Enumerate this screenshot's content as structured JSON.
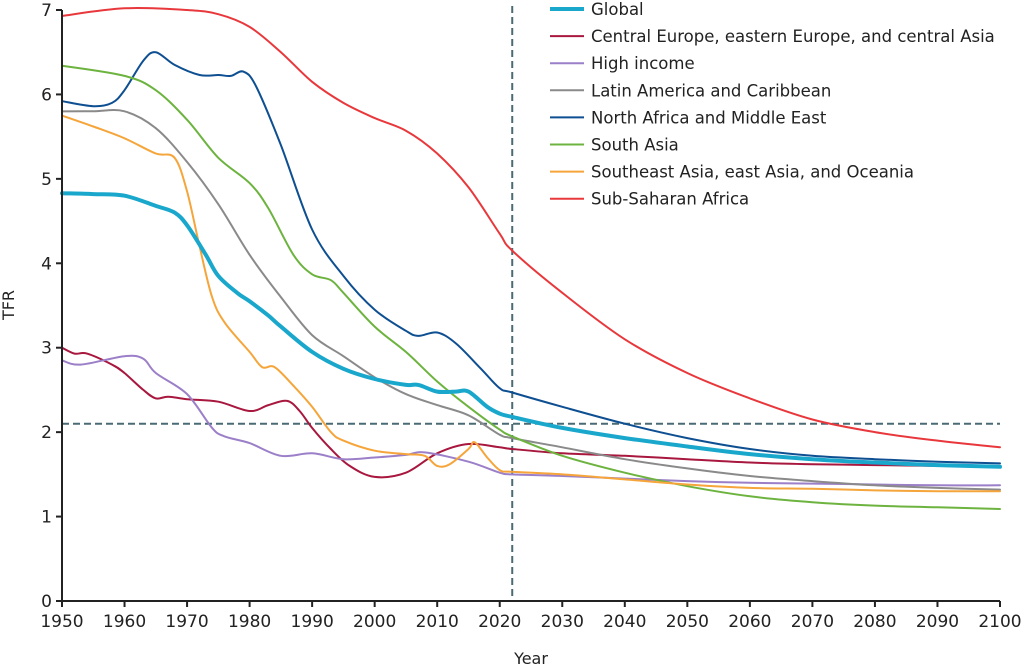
{
  "chart_data": {
    "type": "line",
    "xlabel": "Year",
    "ylabel": "TFR",
    "xlim": [
      1950,
      2100
    ],
    "ylim": [
      0,
      7
    ],
    "xticks": [
      1950,
      1960,
      1970,
      1980,
      1990,
      2000,
      2010,
      2020,
      2030,
      2040,
      2050,
      2060,
      2070,
      2080,
      2090,
      2100
    ],
    "yticks": [
      0,
      1,
      2,
      3,
      4,
      5,
      6,
      7
    ],
    "grid": false,
    "legend_position": "top-right",
    "reference_lines": {
      "vertical_year": 2022,
      "horizontal_tfr": 2.1,
      "color": "#4a6b75"
    },
    "series": [
      {
        "name": "Global",
        "color": "#1aa7cc",
        "width": 4,
        "x": [
          1950,
          1955,
          1960,
          1965,
          1968,
          1970,
          1973,
          1975,
          1978,
          1980,
          1983,
          1985,
          1990,
          1995,
          2000,
          2005,
          2007,
          2010,
          2013,
          2015,
          2018,
          2020,
          2022,
          2030,
          2040,
          2050,
          2060,
          2070,
          2080,
          2090,
          2100
        ],
        "y": [
          4.83,
          4.82,
          4.8,
          4.68,
          4.6,
          4.45,
          4.1,
          3.85,
          3.65,
          3.55,
          3.38,
          3.25,
          2.95,
          2.75,
          2.63,
          2.56,
          2.56,
          2.48,
          2.48,
          2.48,
          2.3,
          2.22,
          2.18,
          2.05,
          1.93,
          1.83,
          1.74,
          1.68,
          1.64,
          1.61,
          1.59
        ]
      },
      {
        "name": "Central Europe, eastern Europe, and central Asia",
        "color": "#a8173e",
        "width": 2,
        "x": [
          1950,
          1952,
          1954,
          1958,
          1960,
          1963,
          1965,
          1967,
          1970,
          1975,
          1980,
          1983,
          1986,
          1988,
          1990,
          1993,
          1996,
          2000,
          2005,
          2010,
          2015,
          2020,
          2022,
          2030,
          2040,
          2050,
          2060,
          2070,
          2080,
          2090,
          2100
        ],
        "y": [
          3.0,
          2.93,
          2.93,
          2.8,
          2.7,
          2.5,
          2.4,
          2.42,
          2.39,
          2.36,
          2.25,
          2.32,
          2.37,
          2.25,
          2.05,
          1.8,
          1.6,
          1.47,
          1.52,
          1.75,
          1.86,
          1.82,
          1.8,
          1.75,
          1.72,
          1.68,
          1.64,
          1.62,
          1.61,
          1.6,
          1.59
        ]
      },
      {
        "name": "High income",
        "color": "#9b7fc8",
        "width": 2,
        "x": [
          1950,
          1953,
          1960,
          1963,
          1965,
          1970,
          1974,
          1976,
          1980,
          1985,
          1990,
          1995,
          2000,
          2005,
          2008,
          2015,
          2020,
          2022,
          2030,
          2040,
          2050,
          2060,
          2070,
          2080,
          2090,
          2100
        ],
        "y": [
          2.85,
          2.8,
          2.9,
          2.87,
          2.7,
          2.45,
          2.05,
          1.95,
          1.87,
          1.72,
          1.75,
          1.68,
          1.7,
          1.73,
          1.76,
          1.65,
          1.52,
          1.5,
          1.48,
          1.45,
          1.42,
          1.4,
          1.39,
          1.38,
          1.37,
          1.37
        ]
      },
      {
        "name": "Latin America and Caribbean",
        "color": "#8a8a8a",
        "width": 2,
        "x": [
          1950,
          1955,
          1960,
          1965,
          1970,
          1975,
          1980,
          1985,
          1990,
          1995,
          2000,
          2005,
          2010,
          2015,
          2020,
          2022,
          2030,
          2040,
          2050,
          2060,
          2070,
          2080,
          2090,
          2100
        ],
        "y": [
          5.8,
          5.8,
          5.8,
          5.6,
          5.2,
          4.7,
          4.1,
          3.6,
          3.15,
          2.9,
          2.65,
          2.45,
          2.32,
          2.2,
          1.97,
          1.93,
          1.82,
          1.68,
          1.57,
          1.48,
          1.42,
          1.37,
          1.34,
          1.32
        ]
      },
      {
        "name": "North Africa and Middle East",
        "color": "#0e4f92",
        "width": 2,
        "x": [
          1950,
          1955,
          1958,
          1960,
          1963,
          1965,
          1968,
          1972,
          1975,
          1977,
          1979,
          1981,
          1985,
          1990,
          1995,
          2000,
          2005,
          2007,
          2010,
          2013,
          2017,
          2020,
          2022,
          2030,
          2040,
          2050,
          2060,
          2070,
          2080,
          2090,
          2100
        ],
        "y": [
          5.92,
          5.86,
          5.9,
          6.05,
          6.4,
          6.5,
          6.35,
          6.23,
          6.23,
          6.22,
          6.27,
          6.1,
          5.4,
          4.4,
          3.85,
          3.45,
          3.2,
          3.14,
          3.18,
          3.05,
          2.75,
          2.52,
          2.47,
          2.3,
          2.1,
          1.93,
          1.8,
          1.72,
          1.68,
          1.65,
          1.63
        ]
      },
      {
        "name": "South Asia",
        "color": "#6db33f",
        "width": 2,
        "x": [
          1950,
          1960,
          1965,
          1970,
          1975,
          1980,
          1983,
          1987,
          1990,
          1993,
          1995,
          2000,
          2005,
          2010,
          2015,
          2020,
          2022,
          2030,
          2040,
          2050,
          2060,
          2070,
          2080,
          2090,
          2100
        ],
        "y": [
          6.34,
          6.22,
          6.05,
          5.7,
          5.25,
          4.95,
          4.65,
          4.1,
          3.87,
          3.8,
          3.65,
          3.25,
          2.95,
          2.6,
          2.3,
          2.03,
          1.95,
          1.72,
          1.52,
          1.36,
          1.24,
          1.17,
          1.13,
          1.11,
          1.09
        ]
      },
      {
        "name": "Southeast Asia, east Asia, and Oceania",
        "color": "#f5a53a",
        "width": 2,
        "x": [
          1950,
          1955,
          1960,
          1965,
          1968,
          1970,
          1972,
          1974,
          1976,
          1980,
          1982,
          1984,
          1987,
          1990,
          1993,
          1995,
          2000,
          2005,
          2008,
          2010,
          2012,
          2015,
          2016,
          2018,
          2020,
          2022,
          2030,
          2040,
          2050,
          2060,
          2070,
          2080,
          2090,
          2100
        ],
        "y": [
          5.75,
          5.62,
          5.48,
          5.3,
          5.25,
          4.85,
          4.2,
          3.6,
          3.3,
          2.95,
          2.77,
          2.77,
          2.55,
          2.3,
          2.0,
          1.9,
          1.78,
          1.74,
          1.72,
          1.6,
          1.62,
          1.8,
          1.88,
          1.7,
          1.55,
          1.53,
          1.5,
          1.44,
          1.38,
          1.34,
          1.33,
          1.31,
          1.3,
          1.3
        ]
      },
      {
        "name": "Sub-Saharan Africa",
        "color": "#e8383c",
        "width": 2,
        "x": [
          1950,
          1960,
          1970,
          1975,
          1980,
          1985,
          1990,
          1995,
          2000,
          2005,
          2010,
          2015,
          2020,
          2022,
          2030,
          2040,
          2050,
          2060,
          2070,
          2080,
          2090,
          2100
        ],
        "y": [
          6.93,
          7.02,
          7.0,
          6.95,
          6.8,
          6.5,
          6.15,
          5.9,
          5.72,
          5.57,
          5.3,
          4.9,
          4.35,
          4.15,
          3.65,
          3.1,
          2.7,
          2.4,
          2.15,
          2.0,
          1.9,
          1.82
        ]
      }
    ]
  }
}
